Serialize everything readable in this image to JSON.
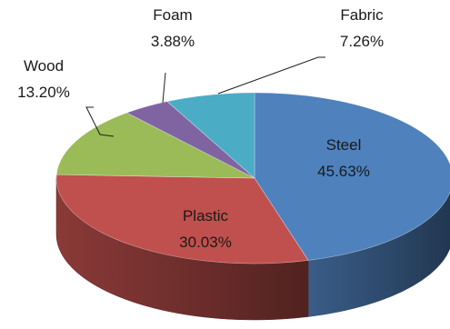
{
  "chart_data": {
    "type": "pie",
    "style": "3d",
    "title": "",
    "slices": [
      {
        "label": "Steel",
        "value": 45.63,
        "display": "45.63%",
        "color": "#4f81bd",
        "label_inside": true
      },
      {
        "label": "Plastic",
        "value": 30.03,
        "display": "30.03%",
        "color": "#c0504d",
        "label_inside": true
      },
      {
        "label": "Wood",
        "value": 13.2,
        "display": "13.20%",
        "color": "#9bbb59",
        "label_inside": false
      },
      {
        "label": "Foam",
        "value": 3.88,
        "display": "3.88%",
        "color": "#8064a2",
        "label_inside": false
      },
      {
        "label": "Fabric",
        "value": 7.26,
        "display": "7.26%",
        "color": "#4bacc6",
        "label_inside": false
      }
    ],
    "legend": "none"
  }
}
